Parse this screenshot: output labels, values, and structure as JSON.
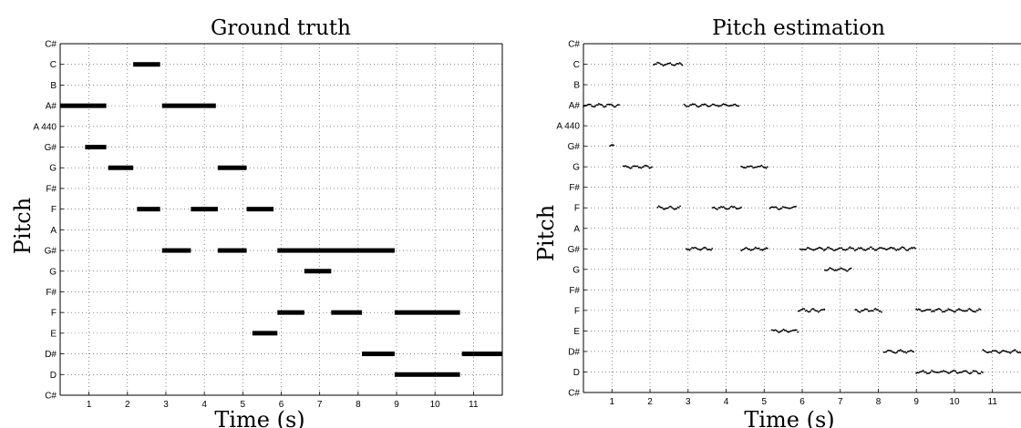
{
  "chart_data": [
    {
      "type": "scatter",
      "title": "Ground truth",
      "xlabel": "Time (s)",
      "ylabel": "Pitch",
      "xticks": [
        "1",
        "2",
        "3",
        "4",
        "5",
        "6",
        "7",
        "8",
        "9",
        "10",
        "11"
      ],
      "yticks": [
        "C#",
        "D",
        "D#",
        "E",
        "F",
        "F#",
        "G",
        "G#",
        "A",
        "F",
        "F#",
        "G",
        "G#",
        "A 440",
        "A#",
        "B",
        "C",
        "C#"
      ],
      "xlim": [
        0.25,
        11.75
      ],
      "ylim": [
        0,
        17
      ],
      "grid": true,
      "notes": [
        {
          "start": 0.25,
          "end": 1.45,
          "pitch_index": 14
        },
        {
          "start": 0.9,
          "end": 1.45,
          "pitch_index": 12
        },
        {
          "start": 1.5,
          "end": 2.15,
          "pitch_index": 11
        },
        {
          "start": 2.15,
          "end": 2.85,
          "pitch_index": 16
        },
        {
          "start": 2.25,
          "end": 2.85,
          "pitch_index": 9
        },
        {
          "start": 2.9,
          "end": 4.3,
          "pitch_index": 14
        },
        {
          "start": 2.9,
          "end": 3.65,
          "pitch_index": 7
        },
        {
          "start": 3.65,
          "end": 4.35,
          "pitch_index": 9
        },
        {
          "start": 4.35,
          "end": 5.1,
          "pitch_index": 11
        },
        {
          "start": 4.35,
          "end": 5.1,
          "pitch_index": 7
        },
        {
          "start": 5.1,
          "end": 5.8,
          "pitch_index": 9
        },
        {
          "start": 5.25,
          "end": 5.9,
          "pitch_index": 3
        },
        {
          "start": 5.9,
          "end": 8.95,
          "pitch_index": 7
        },
        {
          "start": 5.9,
          "end": 6.6,
          "pitch_index": 4
        },
        {
          "start": 6.6,
          "end": 7.3,
          "pitch_index": 6
        },
        {
          "start": 7.3,
          "end": 8.1,
          "pitch_index": 4
        },
        {
          "start": 8.1,
          "end": 8.95,
          "pitch_index": 2
        },
        {
          "start": 8.95,
          "end": 10.65,
          "pitch_index": 4
        },
        {
          "start": 8.95,
          "end": 10.65,
          "pitch_index": 1
        },
        {
          "start": 10.7,
          "end": 11.75,
          "pitch_index": 2
        }
      ]
    },
    {
      "type": "scatter",
      "title": "Pitch estimation",
      "xlabel": "Time (s)",
      "ylabel": "Pitch",
      "xticks": [
        "1",
        "2",
        "3",
        "4",
        "5",
        "6",
        "7",
        "8",
        "9",
        "10",
        "11"
      ],
      "yticks": [
        "C#",
        "D",
        "D#",
        "E",
        "F",
        "F#",
        "G",
        "G#",
        "A",
        "F",
        "F#",
        "G",
        "G#",
        "A 440",
        "A#",
        "B",
        "C",
        "C#"
      ],
      "xlim": [
        0.25,
        11.75
      ],
      "ylim": [
        0,
        17
      ],
      "grid": true,
      "notes": [
        {
          "start": 0.25,
          "end": 1.2,
          "pitch_index": 14
        },
        {
          "start": 0.95,
          "end": 1.05,
          "pitch_index": 12
        },
        {
          "start": 1.3,
          "end": 2.05,
          "pitch_index": 11
        },
        {
          "start": 2.1,
          "end": 2.85,
          "pitch_index": 16
        },
        {
          "start": 2.2,
          "end": 2.8,
          "pitch_index": 9
        },
        {
          "start": 2.9,
          "end": 4.35,
          "pitch_index": 14
        },
        {
          "start": 2.95,
          "end": 3.65,
          "pitch_index": 7
        },
        {
          "start": 3.65,
          "end": 4.4,
          "pitch_index": 9
        },
        {
          "start": 4.4,
          "end": 5.1,
          "pitch_index": 11
        },
        {
          "start": 4.4,
          "end": 5.1,
          "pitch_index": 7
        },
        {
          "start": 5.15,
          "end": 5.85,
          "pitch_index": 9
        },
        {
          "start": 5.2,
          "end": 5.9,
          "pitch_index": 3
        },
        {
          "start": 5.95,
          "end": 9.0,
          "pitch_index": 7
        },
        {
          "start": 5.9,
          "end": 6.6,
          "pitch_index": 4
        },
        {
          "start": 6.6,
          "end": 7.3,
          "pitch_index": 6
        },
        {
          "start": 7.4,
          "end": 8.1,
          "pitch_index": 4
        },
        {
          "start": 8.15,
          "end": 8.95,
          "pitch_index": 2
        },
        {
          "start": 9.0,
          "end": 10.7,
          "pitch_index": 4
        },
        {
          "start": 9.0,
          "end": 10.75,
          "pitch_index": 1
        },
        {
          "start": 10.75,
          "end": 11.75,
          "pitch_index": 2
        }
      ]
    }
  ]
}
